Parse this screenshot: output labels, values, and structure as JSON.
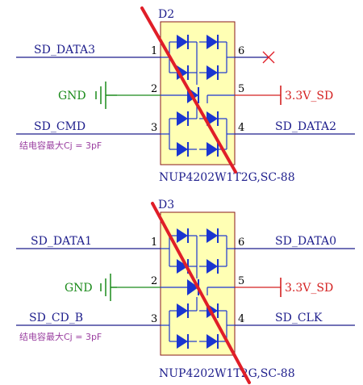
{
  "colors": {
    "wire": "#1e1e8c",
    "text": "#1e1e8c",
    "gnd": "#1a8a1a",
    "power": "#d42020",
    "note": "#9a3fa0",
    "body_fill": "#ffffb4",
    "body_stroke": "#8a1a1a",
    "diode": "#1a35d0",
    "strike": "#e01e28",
    "noconnect": "#e01e28"
  },
  "schematic": {
    "d2": {
      "ref": "D2",
      "part": "NUP4202W1T2G,SC-88",
      "note": "结电容最大Cj = 3pF",
      "pins": {
        "p1": "1",
        "p2": "2",
        "p3": "3",
        "p4": "4",
        "p5": "5",
        "p6": "6"
      },
      "nets": {
        "pin1": "SD_DATA3",
        "pin2": "GND",
        "pin3": "SD_CMD",
        "pin4": "SD_DATA2",
        "pin5": "3.3V_SD"
      }
    },
    "d3": {
      "ref": "D3",
      "part": "NUP4202W1T2G,SC-88",
      "note": "结电容最大Cj = 3pF",
      "pins": {
        "p1": "1",
        "p2": "2",
        "p3": "3",
        "p4": "4",
        "p5": "5",
        "p6": "6"
      },
      "nets": {
        "pin1": "SD_DATA1",
        "pin2": "GND",
        "pin3": "SD_CD_B",
        "pin4": "SD_CLK",
        "pin5": "3.3V_SD",
        "pin6": "SD_DATA0"
      }
    }
  }
}
